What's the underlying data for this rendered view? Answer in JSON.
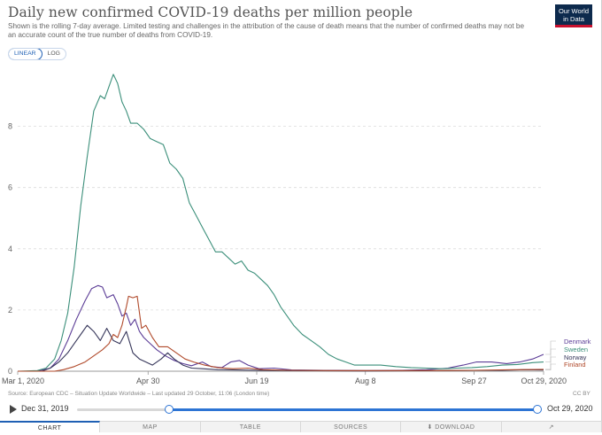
{
  "header": {
    "title": "Daily new confirmed COVID-19 deaths per million people",
    "subtitle": "Shown is the rolling 7-day average. Limited testing and challenges in the attribution of the cause of death means that the number of confirmed deaths may not be an accurate count of the true number of deaths from COVID-19.",
    "logo_line1": "Our World",
    "logo_line2": "in Data",
    "logo_color": "#0d2a4d",
    "logo_accent": "#c8102e"
  },
  "scale_toggle": {
    "linear_label": "LINEAR",
    "log_label": "LOG",
    "active": "LINEAR"
  },
  "footer": {
    "source": "Source: European CDC – Situation Update Worldwide – Last updated 29 October, 11:06 (London time)",
    "license": "CC BY"
  },
  "timeline": {
    "start_label": "Dec 31, 2019",
    "end_label": "Oct 29, 2020",
    "selected_start": "Mar 1, 2020",
    "selected_end": "Oct 29, 2020"
  },
  "tabs": [
    "CHART",
    "MAP",
    "TABLE",
    "SOURCES",
    "DOWNLOAD",
    ""
  ],
  "active_tab": "CHART",
  "chart_data": {
    "type": "line",
    "title": "Daily new confirmed COVID-19 deaths per million people",
    "x_start": "2020-03-01",
    "x_end": "2020-10-29",
    "x_tick_labels": [
      "Mar 1, 2020",
      "Apr 30",
      "Jun 19",
      "Aug 8",
      "Sep 27",
      "Oct 29, 2020"
    ],
    "x_tick_dates": [
      "2020-03-01",
      "2020-04-30",
      "2020-06-19",
      "2020-08-08",
      "2020-09-27",
      "2020-10-29"
    ],
    "y_ticks": [
      0,
      2,
      4,
      6,
      8
    ],
    "ylim": [
      0,
      10
    ],
    "grid": true,
    "series": [
      {
        "name": "Denmark",
        "color": "#5b3c96",
        "points": [
          [
            "2020-03-01",
            0
          ],
          [
            "2020-03-10",
            0
          ],
          [
            "2020-03-16",
            0.1
          ],
          [
            "2020-03-20",
            0.4
          ],
          [
            "2020-03-24",
            1.0
          ],
          [
            "2020-03-28",
            1.7
          ],
          [
            "2020-04-01",
            2.3
          ],
          [
            "2020-04-04",
            2.7
          ],
          [
            "2020-04-07",
            2.8
          ],
          [
            "2020-04-09",
            2.75
          ],
          [
            "2020-04-11",
            2.4
          ],
          [
            "2020-04-14",
            2.5
          ],
          [
            "2020-04-16",
            2.2
          ],
          [
            "2020-04-18",
            1.8
          ],
          [
            "2020-04-20",
            1.9
          ],
          [
            "2020-04-22",
            1.5
          ],
          [
            "2020-04-24",
            1.7
          ],
          [
            "2020-04-26",
            1.3
          ],
          [
            "2020-04-28",
            1.1
          ],
          [
            "2020-05-01",
            0.9
          ],
          [
            "2020-05-04",
            0.7
          ],
          [
            "2020-05-08",
            0.5
          ],
          [
            "2020-05-12",
            0.35
          ],
          [
            "2020-05-16",
            0.25
          ],
          [
            "2020-05-20",
            0.18
          ],
          [
            "2020-05-25",
            0.3
          ],
          [
            "2020-05-29",
            0.15
          ],
          [
            "2020-06-03",
            0.12
          ],
          [
            "2020-06-07",
            0.3
          ],
          [
            "2020-06-11",
            0.35
          ],
          [
            "2020-06-15",
            0.2
          ],
          [
            "2020-06-20",
            0.08
          ],
          [
            "2020-06-27",
            0.1
          ],
          [
            "2020-07-05",
            0.04
          ],
          [
            "2020-07-20",
            0.03
          ],
          [
            "2020-08-08",
            0.02
          ],
          [
            "2020-08-25",
            0.03
          ],
          [
            "2020-09-05",
            0.05
          ],
          [
            "2020-09-15",
            0.1
          ],
          [
            "2020-09-22",
            0.2
          ],
          [
            "2020-09-28",
            0.3
          ],
          [
            "2020-10-05",
            0.3
          ],
          [
            "2020-10-12",
            0.25
          ],
          [
            "2020-10-18",
            0.3
          ],
          [
            "2020-10-24",
            0.4
          ],
          [
            "2020-10-29",
            0.55
          ]
        ]
      },
      {
        "name": "Sweden",
        "color": "#3b8f7a",
        "points": [
          [
            "2020-03-01",
            0
          ],
          [
            "2020-03-10",
            0.02
          ],
          [
            "2020-03-14",
            0.1
          ],
          [
            "2020-03-18",
            0.4
          ],
          [
            "2020-03-21",
            1.0
          ],
          [
            "2020-03-24",
            1.9
          ],
          [
            "2020-03-27",
            3.4
          ],
          [
            "2020-03-30",
            5.4
          ],
          [
            "2020-04-02",
            7.0
          ],
          [
            "2020-04-05",
            8.5
          ],
          [
            "2020-04-08",
            9.0
          ],
          [
            "2020-04-10",
            8.9
          ],
          [
            "2020-04-12",
            9.3
          ],
          [
            "2020-04-14",
            9.7
          ],
          [
            "2020-04-16",
            9.4
          ],
          [
            "2020-04-18",
            8.8
          ],
          [
            "2020-04-20",
            8.5
          ],
          [
            "2020-04-22",
            8.1
          ],
          [
            "2020-04-25",
            8.1
          ],
          [
            "2020-04-28",
            7.9
          ],
          [
            "2020-05-01",
            7.6
          ],
          [
            "2020-05-04",
            7.5
          ],
          [
            "2020-05-07",
            7.4
          ],
          [
            "2020-05-10",
            6.8
          ],
          [
            "2020-05-13",
            6.6
          ],
          [
            "2020-05-16",
            6.3
          ],
          [
            "2020-05-19",
            5.5
          ],
          [
            "2020-05-22",
            5.1
          ],
          [
            "2020-05-25",
            4.7
          ],
          [
            "2020-05-28",
            4.3
          ],
          [
            "2020-05-31",
            3.9
          ],
          [
            "2020-06-03",
            3.9
          ],
          [
            "2020-06-06",
            3.7
          ],
          [
            "2020-06-09",
            3.5
          ],
          [
            "2020-06-12",
            3.6
          ],
          [
            "2020-06-15",
            3.3
          ],
          [
            "2020-06-18",
            3.2
          ],
          [
            "2020-06-21",
            3.0
          ],
          [
            "2020-06-24",
            2.8
          ],
          [
            "2020-06-27",
            2.5
          ],
          [
            "2020-06-30",
            2.1
          ],
          [
            "2020-07-03",
            1.8
          ],
          [
            "2020-07-06",
            1.5
          ],
          [
            "2020-07-10",
            1.2
          ],
          [
            "2020-07-14",
            1.0
          ],
          [
            "2020-07-18",
            0.8
          ],
          [
            "2020-07-22",
            0.55
          ],
          [
            "2020-07-26",
            0.4
          ],
          [
            "2020-07-30",
            0.3
          ],
          [
            "2020-08-03",
            0.2
          ],
          [
            "2020-08-08",
            0.2
          ],
          [
            "2020-08-15",
            0.2
          ],
          [
            "2020-08-22",
            0.15
          ],
          [
            "2020-08-29",
            0.12
          ],
          [
            "2020-09-05",
            0.1
          ],
          [
            "2020-09-12",
            0.08
          ],
          [
            "2020-09-19",
            0.1
          ],
          [
            "2020-09-26",
            0.12
          ],
          [
            "2020-10-03",
            0.15
          ],
          [
            "2020-10-10",
            0.2
          ],
          [
            "2020-10-17",
            0.22
          ],
          [
            "2020-10-24",
            0.28
          ],
          [
            "2020-10-29",
            0.3
          ]
        ]
      },
      {
        "name": "Norway",
        "color": "#36365a",
        "points": [
          [
            "2020-03-01",
            0
          ],
          [
            "2020-03-12",
            0
          ],
          [
            "2020-03-16",
            0.1
          ],
          [
            "2020-03-20",
            0.3
          ],
          [
            "2020-03-24",
            0.6
          ],
          [
            "2020-03-27",
            0.9
          ],
          [
            "2020-03-30",
            1.2
          ],
          [
            "2020-04-02",
            1.5
          ],
          [
            "2020-04-05",
            1.3
          ],
          [
            "2020-04-08",
            1.0
          ],
          [
            "2020-04-11",
            1.4
          ],
          [
            "2020-04-14",
            1.0
          ],
          [
            "2020-04-17",
            0.9
          ],
          [
            "2020-04-20",
            1.3
          ],
          [
            "2020-04-23",
            0.6
          ],
          [
            "2020-04-26",
            0.4
          ],
          [
            "2020-04-29",
            0.3
          ],
          [
            "2020-05-02",
            0.2
          ],
          [
            "2020-05-06",
            0.4
          ],
          [
            "2020-05-09",
            0.6
          ],
          [
            "2020-05-12",
            0.4
          ],
          [
            "2020-05-16",
            0.2
          ],
          [
            "2020-05-20",
            0.1
          ],
          [
            "2020-05-25",
            0.08
          ],
          [
            "2020-06-01",
            0.05
          ],
          [
            "2020-06-10",
            0.04
          ],
          [
            "2020-06-20",
            0.03
          ],
          [
            "2020-07-05",
            0.02
          ],
          [
            "2020-08-08",
            0.01
          ],
          [
            "2020-09-10",
            0.02
          ],
          [
            "2020-09-27",
            0.03
          ],
          [
            "2020-10-10",
            0.03
          ],
          [
            "2020-10-20",
            0.05
          ],
          [
            "2020-10-29",
            0.04
          ]
        ]
      },
      {
        "name": "Finland",
        "color": "#b0492a",
        "points": [
          [
            "2020-03-01",
            0
          ],
          [
            "2020-03-18",
            0
          ],
          [
            "2020-03-22",
            0.05
          ],
          [
            "2020-03-27",
            0.15
          ],
          [
            "2020-04-01",
            0.3
          ],
          [
            "2020-04-05",
            0.5
          ],
          [
            "2020-04-09",
            0.7
          ],
          [
            "2020-04-12",
            0.9
          ],
          [
            "2020-04-14",
            1.2
          ],
          [
            "2020-04-16",
            1.1
          ],
          [
            "2020-04-18",
            1.5
          ],
          [
            "2020-04-20",
            2.1
          ],
          [
            "2020-04-21",
            2.45
          ],
          [
            "2020-04-23",
            2.4
          ],
          [
            "2020-04-25",
            2.45
          ],
          [
            "2020-04-27",
            1.4
          ],
          [
            "2020-04-29",
            1.5
          ],
          [
            "2020-05-02",
            1.1
          ],
          [
            "2020-05-05",
            0.8
          ],
          [
            "2020-05-09",
            0.8
          ],
          [
            "2020-05-13",
            0.6
          ],
          [
            "2020-05-17",
            0.4
          ],
          [
            "2020-05-21",
            0.3
          ],
          [
            "2020-05-26",
            0.2
          ],
          [
            "2020-06-01",
            0.12
          ],
          [
            "2020-06-08",
            0.08
          ],
          [
            "2020-06-15",
            0.1
          ],
          [
            "2020-06-22",
            0.05
          ],
          [
            "2020-07-05",
            0.03
          ],
          [
            "2020-07-25",
            0.02
          ],
          [
            "2020-08-08",
            0.02
          ],
          [
            "2020-09-10",
            0.02
          ],
          [
            "2020-09-27",
            0.03
          ],
          [
            "2020-10-15",
            0.05
          ],
          [
            "2020-10-29",
            0.06
          ]
        ]
      }
    ]
  }
}
